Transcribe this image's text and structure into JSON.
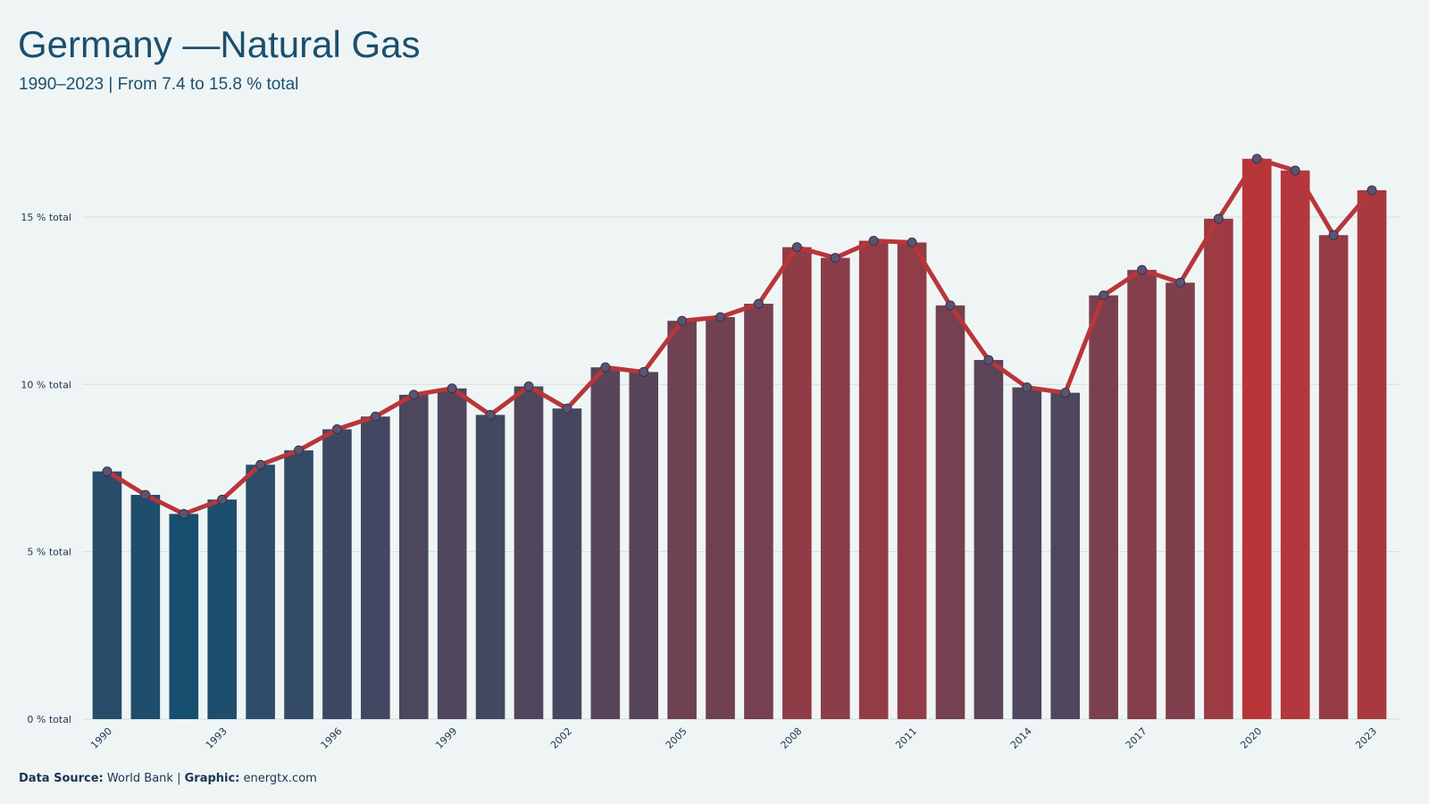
{
  "chart_data": {
    "type": "bar",
    "title": "Germany —Natural Gas",
    "subtitle": "1990–2023 | From 7.4 to 15.8 % total",
    "x": [
      1990,
      1991,
      1992,
      1993,
      1994,
      1995,
      1996,
      1997,
      1998,
      1999,
      2000,
      2001,
      2002,
      2003,
      2004,
      2005,
      2006,
      2007,
      2008,
      2009,
      2010,
      2011,
      2012,
      2013,
      2014,
      2015,
      2016,
      2017,
      2018,
      2019,
      2020,
      2021,
      2022,
      2023
    ],
    "values": [
      7.4,
      6.7,
      6.13,
      6.56,
      7.6,
      8.03,
      8.66,
      9.04,
      9.69,
      9.88,
      9.09,
      9.94,
      9.28,
      10.51,
      10.37,
      11.9,
      12.01,
      12.41,
      14.1,
      13.78,
      14.29,
      14.24,
      12.36,
      10.73,
      9.91,
      9.75,
      12.66,
      13.42,
      13.04,
      14.95,
      16.74,
      16.39,
      14.46,
      15.8
    ],
    "color_scale": [
      "#164f70",
      "#b8363a"
    ],
    "line_overlay": true,
    "line_color": "#b8363a",
    "point_color": "#5b5470",
    "xlim": [
      1989.5,
      2023.5
    ],
    "xticks": [
      1990,
      1993,
      1996,
      1999,
      2002,
      2005,
      2008,
      2011,
      2014,
      2017,
      2020,
      2023
    ],
    "ylim": [
      0,
      17
    ],
    "yticks": [
      {
        "value": 0,
        "label": "0 % total"
      },
      {
        "value": 5,
        "label": "5 % total"
      },
      {
        "value": 10,
        "label": "10 % total"
      },
      {
        "value": 15,
        "label": "15 % total"
      }
    ],
    "grid": true,
    "caption": [
      "Data Source:",
      "World Bank |",
      "Graphic:",
      "energtx.com"
    ]
  }
}
